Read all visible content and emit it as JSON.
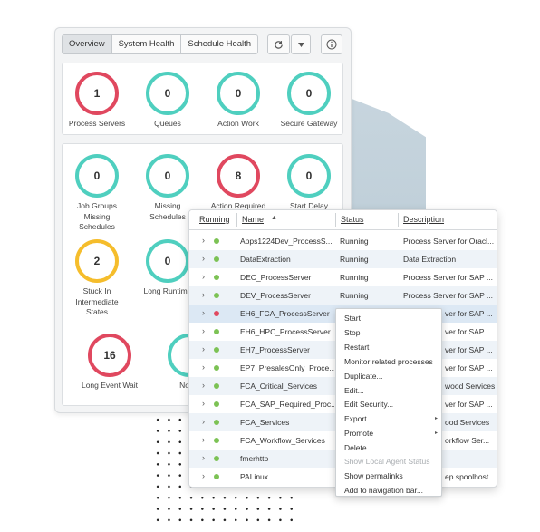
{
  "dashboard": {
    "tabs": [
      "Overview",
      "System Health",
      "Schedule Health"
    ],
    "toolbar": {
      "refresh_icon": "refresh-icon",
      "dropdown_icon": "chevron-down-icon",
      "info_icon": "info-icon"
    },
    "top_gauges": [
      {
        "value": "1",
        "label": "Process Servers",
        "color": "red"
      },
      {
        "value": "0",
        "label": "Queues",
        "color": "teal"
      },
      {
        "value": "0",
        "label": "Action Work",
        "color": "teal"
      },
      {
        "value": "0",
        "label": "Secure Gateway",
        "color": "teal"
      }
    ],
    "bottom_gauges": [
      {
        "value": "0",
        "label": "Job Groups Missing Schedules",
        "color": "teal"
      },
      {
        "value": "0",
        "label": "Missing Schedules",
        "color": "teal"
      },
      {
        "value": "8",
        "label": "Action Required",
        "color": "red"
      },
      {
        "value": "0",
        "label": "Start Delay",
        "color": "teal"
      },
      {
        "value": "2",
        "label": "Stuck In Intermediate States",
        "color": "yellow"
      },
      {
        "value": "0",
        "label": "Long Runtime",
        "color": "teal"
      },
      {
        "value": "16",
        "label": "Long Event Wait",
        "color": "red"
      },
      {
        "value": "",
        "label": "Not C",
        "color": "teal"
      }
    ],
    "colors": {
      "teal": "#4fcfbf",
      "red": "#e0485f",
      "yellow": "#f5bd2c"
    }
  },
  "table": {
    "columns": [
      "Running",
      "Name",
      "Status",
      "Description"
    ],
    "sort_icon": "sort-ascending-icon",
    "rows": [
      {
        "name": "Apps1224Dev_ProcessS...",
        "status": "Running",
        "desc": "Process Server for Oracl...",
        "state": "green"
      },
      {
        "name": "DataExtraction",
        "status": "Running",
        "desc": "Data Extraction",
        "state": "green"
      },
      {
        "name": "DEC_ProcessServer",
        "status": "Running",
        "desc": "Process Server for SAP ...",
        "state": "green"
      },
      {
        "name": "DEV_ProcessServer",
        "status": "Running",
        "desc": "Process Server for SAP ...",
        "state": "green"
      },
      {
        "name": "EH6_FCA_ProcessServer",
        "status": "",
        "desc": "ver for SAP ...",
        "state": "red"
      },
      {
        "name": "EH6_HPC_ProcessServer",
        "status": "",
        "desc": "ver for SAP ...",
        "state": "green"
      },
      {
        "name": "EH7_ProcessServer",
        "status": "",
        "desc": "ver for SAP ...",
        "state": "green"
      },
      {
        "name": "EP7_PresalesOnly_Proce...",
        "status": "",
        "desc": "ver for SAP ...",
        "state": "green"
      },
      {
        "name": "FCA_Critical_Services",
        "status": "",
        "desc": "wood Services",
        "state": "green"
      },
      {
        "name": "FCA_SAP_Required_Proc...",
        "status": "",
        "desc": "ver for SAP ...",
        "state": "green"
      },
      {
        "name": "FCA_Services",
        "status": "",
        "desc": "ood Services",
        "state": "green"
      },
      {
        "name": "FCA_Workflow_Services",
        "status": "",
        "desc": "orkflow Ser...",
        "state": "green"
      },
      {
        "name": "fmerhttp",
        "status": "",
        "desc": "",
        "state": "green"
      },
      {
        "name": "PALinux",
        "status": "",
        "desc": "ep spoolhost...",
        "state": "green"
      }
    ]
  },
  "context_menu": {
    "items": [
      {
        "label": "Start",
        "disabled": false,
        "submenu": false
      },
      {
        "label": "Stop",
        "disabled": false,
        "submenu": false
      },
      {
        "label": "Restart",
        "disabled": false,
        "submenu": false
      },
      {
        "label": "Monitor related processes",
        "disabled": false,
        "submenu": false
      },
      {
        "label": "Duplicate...",
        "disabled": false,
        "submenu": false
      },
      {
        "label": "Edit...",
        "disabled": false,
        "submenu": false
      },
      {
        "label": "Edit Security...",
        "disabled": false,
        "submenu": false
      },
      {
        "label": "Export",
        "disabled": false,
        "submenu": true
      },
      {
        "label": "Promote",
        "disabled": false,
        "submenu": true
      },
      {
        "label": "Delete",
        "disabled": false,
        "submenu": false
      },
      {
        "label": "Show Local Agent Status",
        "disabled": true,
        "submenu": false
      },
      {
        "label": "Show permalinks",
        "disabled": false,
        "submenu": false
      },
      {
        "label": "Add to navigation bar...",
        "disabled": false,
        "submenu": false
      }
    ]
  }
}
